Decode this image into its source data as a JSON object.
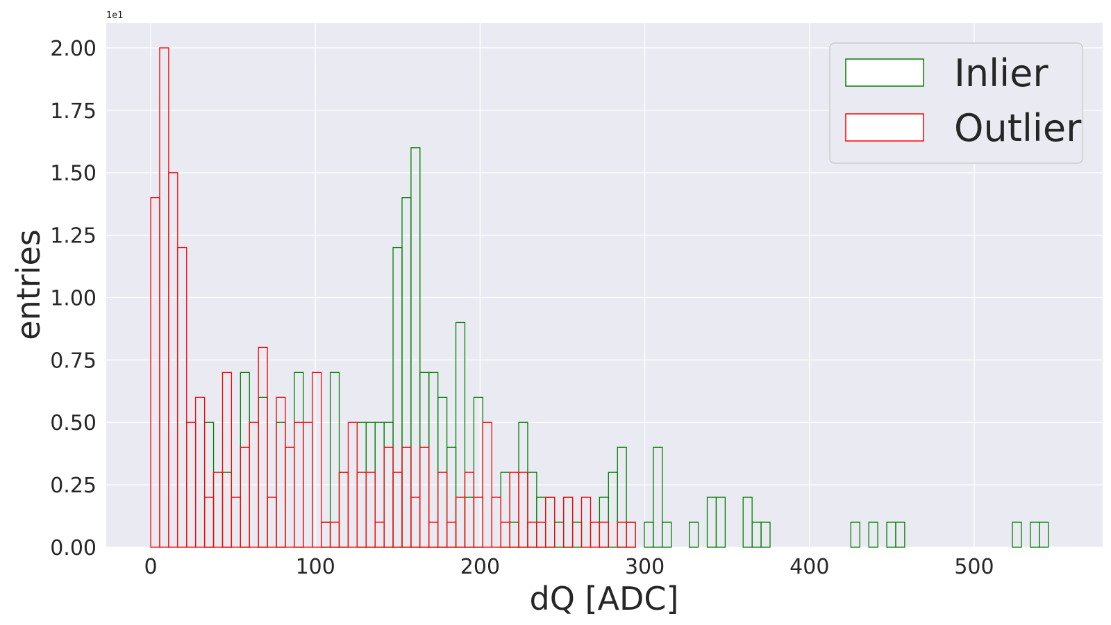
{
  "chart_data": {
    "type": "bar",
    "subtype": "step-histogram",
    "title": "",
    "xlabel": "dQ [ADC]",
    "ylabel": "entries",
    "y_offset_label": "1e1",
    "xlim": [
      -27,
      578
    ],
    "ylim": [
      0,
      2.1
    ],
    "x_ticks": [
      0,
      100,
      200,
      300,
      400,
      500
    ],
    "x_tick_labels": [
      "0",
      "100",
      "200",
      "300",
      "400",
      "500"
    ],
    "y_ticks": [
      0,
      0.25,
      0.5,
      0.75,
      1.0,
      1.25,
      1.5,
      1.75,
      2.0
    ],
    "y_tick_labels": [
      "0.00",
      "0.25",
      "0.50",
      "0.75",
      "1.00",
      "1.25",
      "1.50",
      "1.75",
      "2.00"
    ],
    "grid": true,
    "legend_position": "top-right",
    "bin_start": 0,
    "bin_width": 5.45,
    "series": [
      {
        "name": "Inlier",
        "color": "#008000",
        "values": [
          0,
          0,
          0,
          0,
          0,
          0,
          0.5,
          0,
          0.3,
          0,
          0.7,
          0,
          0.6,
          0,
          0.5,
          0,
          0.7,
          0,
          0,
          0.1,
          0.7,
          0.3,
          0,
          0.5,
          0.5,
          0.5,
          0.5,
          1.2,
          1.4,
          1.6,
          0.7,
          0.7,
          0.6,
          0.4,
          0.9,
          0.2,
          0.6,
          0,
          0,
          0.3,
          0.1,
          0.5,
          0.3,
          0.2,
          0.2,
          0.1,
          0.2,
          0.1,
          0,
          0,
          0.2,
          0.3,
          0.4,
          0.1,
          0,
          0.1,
          0.4,
          0.1,
          0,
          0,
          0.1,
          0,
          0.2,
          0.2,
          0,
          0,
          0.2,
          0.1,
          0.1,
          0,
          0,
          0,
          0,
          0,
          0,
          0,
          0,
          0,
          0.1,
          0,
          0.1,
          0,
          0.1,
          0.1,
          0,
          0,
          0,
          0,
          0,
          0,
          0,
          0,
          0,
          0,
          0,
          0,
          0.1,
          0,
          0.1,
          0.1,
          0,
          0,
          0,
          0,
          0,
          0,
          0,
          0,
          0
        ]
      },
      {
        "name": "Outlier",
        "color": "#ff0000",
        "values": [
          1.4,
          2.0,
          1.5,
          1.2,
          0.5,
          0.6,
          0.2,
          0.3,
          0.7,
          0.2,
          0.4,
          0.5,
          0.8,
          0.2,
          0.6,
          0.4,
          0.5,
          0.5,
          0.7,
          0.1,
          0.1,
          0.3,
          0.5,
          0.3,
          0.3,
          0.1,
          0.4,
          0.3,
          0.4,
          0.2,
          0.4,
          0.1,
          0.3,
          0.1,
          0.2,
          0.3,
          0.2,
          0.5,
          0.2,
          0.1,
          0.3,
          0.3,
          0.1,
          0.1,
          0.2,
          0,
          0.2,
          0,
          0.2,
          0.1,
          0.1,
          0,
          0.1,
          0.1,
          0,
          0,
          0,
          0,
          0,
          0,
          0,
          0,
          0,
          0,
          0,
          0,
          0,
          0,
          0,
          0,
          0,
          0,
          0,
          0,
          0,
          0,
          0,
          0,
          0,
          0,
          0,
          0,
          0,
          0,
          0,
          0,
          0,
          0,
          0,
          0,
          0,
          0,
          0,
          0,
          0,
          0,
          0,
          0,
          0,
          0,
          0,
          0,
          0,
          0,
          0,
          0,
          0,
          0,
          0,
          0
        ]
      }
    ]
  }
}
